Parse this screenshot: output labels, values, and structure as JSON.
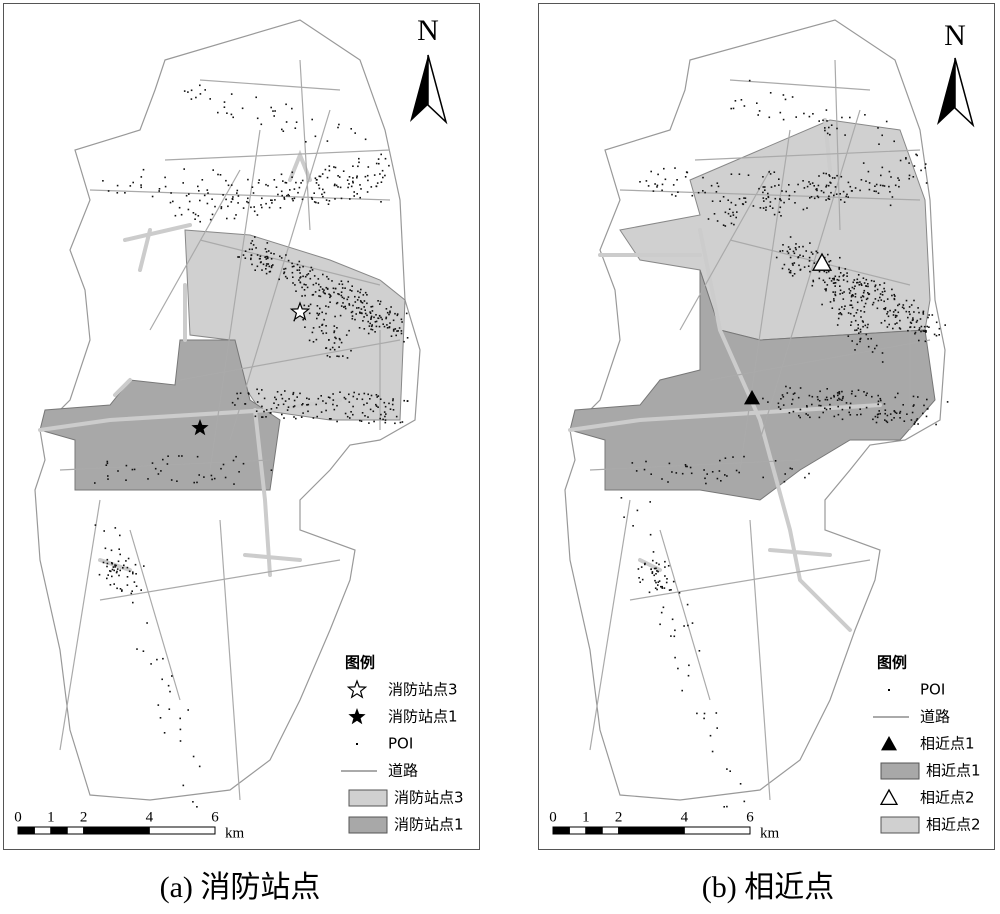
{
  "panels": [
    {
      "north": "N",
      "legend": {
        "title": "图例",
        "items": [
          "消防站点3",
          "消防站点1",
          "POI",
          "道路",
          "消防站点3",
          "消防站点1"
        ]
      },
      "scale": {
        "ticks": [
          0,
          1,
          2,
          4,
          6
        ],
        "unit": "km"
      },
      "caption": "(a) 消防站点"
    },
    {
      "north": "N",
      "legend": {
        "title": "图例",
        "items": [
          "POI",
          "道路",
          "相近点1",
          "相近点1",
          "相近点2",
          "相近点2"
        ]
      },
      "scale": {
        "ticks": [
          0,
          1,
          2,
          4,
          6
        ],
        "unit": "km"
      },
      "caption": "(b) 相近点"
    }
  ]
}
